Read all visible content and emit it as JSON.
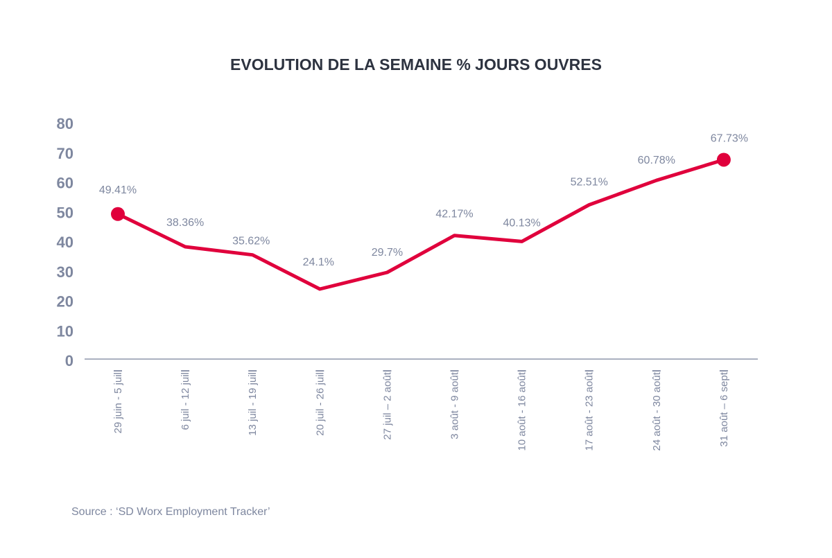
{
  "chart_data": {
    "type": "line",
    "title": "EVOLUTION DE LA SEMAINE % JOURS OUVRES",
    "xlabel": "",
    "ylabel": "",
    "ylim": [
      0,
      80
    ],
    "yticks": [
      "0",
      "10",
      "20",
      "30",
      "40",
      "50",
      "60",
      "70",
      "80"
    ],
    "categories": [
      "29 juin - 5 juil",
      "6 juil - 12 juil",
      "13 juil - 19 juil",
      "20 juil - 26 juil",
      "27 juil – 2 août",
      "3 août - 9 août",
      "10 août - 16 août",
      "17 août - 23 août",
      "24 août - 30 août",
      "31 août – 6 sept"
    ],
    "series": [
      {
        "name": "% jours ouvres",
        "values": [
          49.41,
          38.36,
          35.62,
          24.1,
          29.7,
          42.17,
          40.13,
          52.51,
          60.78,
          67.73
        ],
        "labels": [
          "49.41%",
          "38.36%",
          "35.62%",
          "24.1%",
          "29.7%",
          "42.17%",
          "40.13%",
          "52.51%",
          "60.78%",
          "67.73%"
        ],
        "color": "#e0003c"
      }
    ],
    "grid": false,
    "legend": "none",
    "source": "Source : ‘SD Worx Employment Tracker’"
  },
  "colors": {
    "line": "#e0003c",
    "axis": "#8d95ab",
    "text": "#7e879f",
    "title": "#2d3340"
  }
}
